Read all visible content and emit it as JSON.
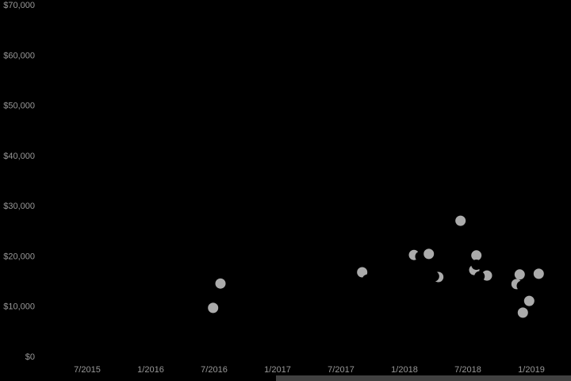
{
  "chart_data": {
    "type": "scatter",
    "title": "",
    "xlabel": "",
    "ylabel": "",
    "x_axis": {
      "tick_labels": [
        "7/2015",
        "1/2016",
        "7/2016",
        "1/2017",
        "7/2017",
        "1/2018",
        "7/2018",
        "1/2019"
      ],
      "tick_month_index": [
        0,
        6,
        12,
        18,
        24,
        30,
        36,
        42
      ],
      "unit": "month/year since 7/2015"
    },
    "y_axis": {
      "tick_labels": [
        "$0",
        "$10,000",
        "$20,000",
        "$30,000",
        "$40,000",
        "$50,000",
        "$60,000",
        "$70,000"
      ],
      "tick_values": [
        0,
        10000,
        20000,
        30000,
        40000,
        50000,
        60000,
        70000
      ],
      "range": [
        0,
        70000
      ],
      "grid": false
    },
    "legend": {
      "visible": false
    },
    "series_info": [
      {
        "name": "visible-points",
        "color": "#ababab"
      },
      {
        "name": "occluding-points",
        "color": "#000000",
        "note": "black dots drawn over gray dots, visible only as bites/crescents"
      }
    ],
    "points_draw_order": [
      {
        "series": "gray",
        "date": "2/2018",
        "month_index": 30.9,
        "value": 20200
      },
      {
        "series": "black",
        "date": "2/2018",
        "month_index": 31.5,
        "value": 19900
      },
      {
        "series": "gray",
        "date": "3/2018",
        "month_index": 32.3,
        "value": 20400
      },
      {
        "series": "gray",
        "date": "4/2018",
        "month_index": 33.2,
        "value": 15800
      },
      {
        "series": "black",
        "date": "4/2018",
        "month_index": 32.8,
        "value": 15950
      },
      {
        "series": "gray",
        "date": "9/2017",
        "month_index": 26.0,
        "value": 16750
      },
      {
        "series": "black",
        "date": "9/2017",
        "month_index": 26.5,
        "value": 15300
      },
      {
        "series": "gray",
        "date": "8/2018",
        "month_index": 36.6,
        "value": 17200
      },
      {
        "series": "gray",
        "date": "8/2018",
        "month_index": 36.8,
        "value": 20100
      },
      {
        "series": "black",
        "date": "8/2018",
        "month_index": 36.8,
        "value": 18250
      },
      {
        "series": "gray",
        "date": "9/2018",
        "month_index": 37.8,
        "value": 16100
      },
      {
        "series": "black",
        "date": "8/2018",
        "month_index": 37.1,
        "value": 15950
      },
      {
        "series": "gray",
        "date": "6/2018",
        "month_index": 35.3,
        "value": 27000
      },
      {
        "series": "gray",
        "date": "12/2018",
        "month_index": 40.6,
        "value": 14400
      },
      {
        "series": "black",
        "date": "12/2018",
        "month_index": 41.1,
        "value": 14050
      },
      {
        "series": "gray",
        "date": "12/2018",
        "month_index": 40.9,
        "value": 16300
      },
      {
        "series": "gray",
        "date": "12/2018",
        "month_index": 41.2,
        "value": 8700
      },
      {
        "series": "gray",
        "date": "1/2019",
        "month_index": 41.8,
        "value": 11050
      },
      {
        "series": "gray",
        "date": "2/2019",
        "month_index": 42.7,
        "value": 16450
      },
      {
        "series": "gray",
        "date": "8/2016",
        "month_index": 12.6,
        "value": 14500
      },
      {
        "series": "gray",
        "date": "7/2016",
        "month_index": 11.9,
        "value": 9650
      }
    ],
    "colors": {
      "background": "#000000",
      "axis_text": "#989898",
      "point": "#ababab",
      "occluder": "#000000",
      "scrollbar_thumb": "#414141"
    }
  }
}
